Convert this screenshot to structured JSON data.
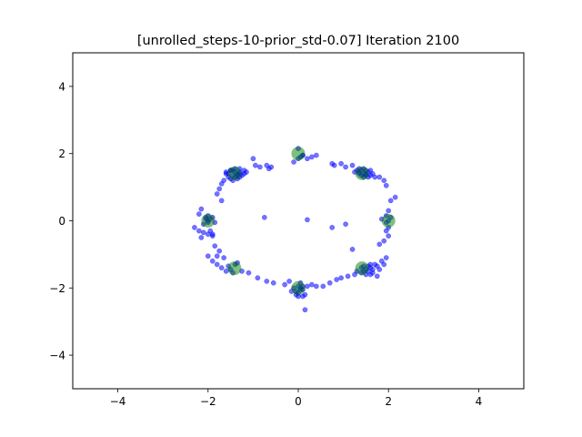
{
  "chart_data": {
    "type": "scatter",
    "title": "[unrolled_steps-10-prior_std-0.07] Iteration 2100",
    "xlabel": "",
    "ylabel": "",
    "xlim": [
      -5,
      5
    ],
    "ylim": [
      -5,
      5
    ],
    "xticks": [
      -4,
      -2,
      0,
      2,
      4
    ],
    "yticks": [
      -4,
      -2,
      0,
      2,
      4
    ],
    "xtick_labels": [
      "−4",
      "−2",
      "0",
      "2",
      "4"
    ],
    "ytick_labels": [
      "−4",
      "−2",
      "0",
      "2",
      "4"
    ],
    "grid": false,
    "legend": "none",
    "series": [
      {
        "color": "#0000ff",
        "alpha": 0.55,
        "points": [
          [
            -0.1,
            1.75
          ],
          [
            0.0,
            2.15
          ],
          [
            0.1,
            1.95
          ],
          [
            0.2,
            1.85
          ],
          [
            0.05,
            1.9
          ],
          [
            -0.7,
            1.65
          ],
          [
            -0.85,
            1.6
          ],
          [
            -0.6,
            1.6
          ],
          [
            -0.95,
            1.65
          ],
          [
            -1.0,
            1.85
          ],
          [
            -1.6,
            1.45
          ],
          [
            -1.5,
            1.5
          ],
          [
            -1.4,
            1.55
          ],
          [
            -1.3,
            1.45
          ],
          [
            -1.25,
            1.35
          ],
          [
            -1.45,
            1.35
          ],
          [
            -1.35,
            1.4
          ],
          [
            -1.55,
            1.3
          ],
          [
            -1.2,
            1.5
          ],
          [
            -1.65,
            1.2
          ],
          [
            -1.7,
            1.1
          ],
          [
            -1.75,
            0.95
          ],
          [
            -1.8,
            0.8
          ],
          [
            -1.7,
            0.6
          ],
          [
            -1.5,
            1.5
          ],
          [
            -1.4,
            1.45
          ],
          [
            -1.3,
            1.3
          ],
          [
            -1.6,
            1.4
          ],
          [
            -1.45,
            1.5
          ],
          [
            -1.35,
            1.35
          ],
          [
            -1.5,
            1.25
          ],
          [
            -1.2,
            1.4
          ],
          [
            -1.3,
            1.55
          ],
          [
            -1.15,
            1.45
          ],
          [
            -1.45,
            1.2
          ],
          [
            -1.35,
            1.25
          ],
          [
            -1.55,
            1.4
          ],
          [
            -1.4,
            1.3
          ],
          [
            -1.3,
            1.4
          ],
          [
            -2.15,
            0.35
          ],
          [
            -2.2,
            0.2
          ],
          [
            -2.05,
            0.1
          ],
          [
            -2.0,
            0.0
          ],
          [
            -1.95,
            0.05
          ],
          [
            -2.1,
            -0.1
          ],
          [
            -1.9,
            0.1
          ],
          [
            -2.0,
            -0.05
          ],
          [
            -2.05,
            0.05
          ],
          [
            -2.2,
            -0.3
          ],
          [
            -2.1,
            -0.35
          ],
          [
            -2.0,
            -0.4
          ],
          [
            -1.9,
            -0.45
          ],
          [
            -2.3,
            -0.2
          ],
          [
            -2.15,
            -0.5
          ],
          [
            -1.95,
            -0.3
          ],
          [
            -2.0,
            0.15
          ],
          [
            -1.85,
            -0.05
          ],
          [
            -1.9,
            -0.4
          ],
          [
            -2.0,
            -1.05
          ],
          [
            -1.9,
            -1.2
          ],
          [
            -1.8,
            -1.3
          ],
          [
            -1.7,
            -1.4
          ],
          [
            -1.6,
            -1.5
          ],
          [
            -1.5,
            -1.45
          ],
          [
            -1.4,
            -1.3
          ],
          [
            -1.35,
            -1.25
          ],
          [
            -1.25,
            -1.5
          ],
          [
            -1.1,
            -1.55
          ],
          [
            -0.9,
            -1.7
          ],
          [
            -0.7,
            -1.8
          ],
          [
            -0.55,
            -1.85
          ],
          [
            -1.85,
            -0.75
          ],
          [
            -1.75,
            -0.9
          ],
          [
            -1.65,
            -1.1
          ],
          [
            -1.8,
            -1.05
          ],
          [
            -1.55,
            -1.35
          ],
          [
            -1.45,
            -1.55
          ],
          [
            -0.3,
            -1.9
          ],
          [
            -0.2,
            -1.8
          ],
          [
            0.0,
            -1.95
          ],
          [
            0.05,
            -2.05
          ],
          [
            0.1,
            -1.95
          ],
          [
            -0.05,
            -2.1
          ],
          [
            0.0,
            -2.25
          ],
          [
            0.15,
            -2.2
          ],
          [
            0.1,
            -2.05
          ],
          [
            0.05,
            -1.85
          ],
          [
            -0.1,
            -2.0
          ],
          [
            0.2,
            -1.95
          ],
          [
            0.3,
            -1.9
          ],
          [
            0.4,
            -1.95
          ],
          [
            0.55,
            -1.95
          ],
          [
            0.7,
            -1.85
          ],
          [
            0.15,
            -2.65
          ],
          [
            -0.05,
            -2.2
          ],
          [
            0.0,
            -2.15
          ],
          [
            0.1,
            -2.25
          ],
          [
            0.05,
            -2.0
          ],
          [
            -0.15,
            -2.1
          ],
          [
            0.85,
            -1.75
          ],
          [
            0.95,
            -1.7
          ],
          [
            1.1,
            -1.65
          ],
          [
            1.25,
            -1.6
          ],
          [
            1.3,
            -1.5
          ],
          [
            1.4,
            -1.55
          ],
          [
            1.5,
            -1.45
          ],
          [
            1.45,
            -1.35
          ],
          [
            1.55,
            -1.5
          ],
          [
            1.6,
            -1.4
          ],
          [
            1.7,
            -1.3
          ],
          [
            1.65,
            -1.55
          ],
          [
            1.75,
            -1.65
          ],
          [
            1.8,
            -1.45
          ],
          [
            1.5,
            -1.6
          ],
          [
            1.4,
            -1.4
          ],
          [
            1.6,
            -1.6
          ],
          [
            1.55,
            -1.35
          ],
          [
            1.65,
            -1.45
          ],
          [
            1.45,
            -1.5
          ],
          [
            1.9,
            -1.3
          ],
          [
            1.85,
            -1.2
          ],
          [
            1.95,
            -1.1
          ],
          [
            1.8,
            -0.7
          ],
          [
            1.9,
            -0.6
          ],
          [
            2.0,
            -0.45
          ],
          [
            1.95,
            -0.3
          ],
          [
            1.75,
            -1.35
          ],
          [
            1.6,
            -1.3
          ],
          [
            1.95,
            -0.05
          ],
          [
            2.0,
            0.0
          ],
          [
            2.05,
            0.1
          ],
          [
            2.0,
            0.3
          ],
          [
            2.05,
            0.6
          ],
          [
            2.15,
            0.7
          ],
          [
            2.0,
            -0.2
          ],
          [
            1.85,
            0.05
          ],
          [
            1.95,
            0.15
          ],
          [
            1.25,
            1.45
          ],
          [
            1.35,
            1.4
          ],
          [
            1.4,
            1.5
          ],
          [
            1.5,
            1.35
          ],
          [
            1.55,
            1.45
          ],
          [
            1.6,
            1.5
          ],
          [
            1.45,
            1.55
          ],
          [
            1.65,
            1.4
          ],
          [
            1.7,
            1.3
          ],
          [
            1.4,
            1.35
          ],
          [
            1.3,
            1.5
          ],
          [
            1.5,
            1.5
          ],
          [
            1.55,
            1.3
          ],
          [
            1.6,
            1.35
          ],
          [
            1.45,
            1.4
          ],
          [
            1.35,
            1.55
          ],
          [
            1.8,
            1.3
          ],
          [
            1.9,
            1.2
          ],
          [
            1.95,
            1.05
          ],
          [
            1.2,
            1.65
          ],
          [
            1.05,
            1.6
          ],
          [
            0.95,
            1.7
          ],
          [
            0.8,
            1.65
          ],
          [
            0.75,
            1.7
          ],
          [
            1.35,
            1.45
          ],
          [
            1.5,
            1.4
          ],
          [
            1.45,
            1.3
          ],
          [
            -0.75,
            0.1
          ],
          [
            0.2,
            0.03
          ],
          [
            0.75,
            -0.2
          ],
          [
            1.05,
            -0.1
          ],
          [
            1.2,
            -0.85
          ],
          [
            0.1,
            1.95
          ],
          [
            0.0,
            1.85
          ],
          [
            0.3,
            1.9
          ],
          [
            0.4,
            1.95
          ],
          [
            -0.65,
            1.55
          ]
        ]
      },
      {
        "color": "#008000",
        "alpha": 0.5,
        "points": [
          [
            0.0,
            2.0
          ],
          [
            1.414,
            1.414
          ],
          [
            2.0,
            0.0
          ],
          [
            1.414,
            -1.414
          ],
          [
            0.0,
            -2.0
          ],
          [
            -1.414,
            -1.414
          ],
          [
            -2.0,
            0.0
          ],
          [
            -1.414,
            1.414
          ]
        ]
      }
    ]
  }
}
